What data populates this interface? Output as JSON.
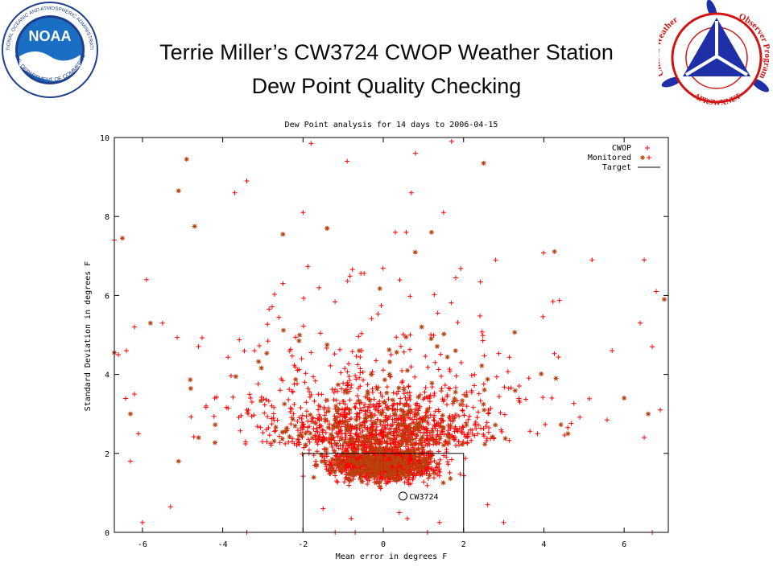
{
  "slide": {
    "title_line1": "Terrie Miller’s CW3724 CWOP Weather Station",
    "title_line2": "Dew Point Quality Checking"
  },
  "logos": {
    "noaa": {
      "icon": "noaa-logo",
      "center_text": "NOAA",
      "ring_text_top": "NATIONAL OCEANIC AND ATMOSPHERIC ADMINISTRATION",
      "ring_text_bottom": "U.S. DEPARTMENT OF COMMERCE",
      "colors": {
        "ring": "#1d3f8c",
        "center": "#1a6fc4",
        "wave": "#ffffff"
      }
    },
    "cwop": {
      "icon": "cwop-logo",
      "left_text": "Citizen Weather",
      "right_text": "Observer Program",
      "bottom_text": "APRSWXNET",
      "colors": {
        "ring": "#d01414",
        "triangle": "#1e2fa8",
        "spokes": "#ffffff",
        "blades": "#1e2fa8"
      }
    }
  },
  "chart_data": {
    "type": "scatter",
    "title": "Dew Point analysis for 14 days to 2006-04-15",
    "xlabel": "Mean error in degrees F",
    "ylabel": "Standard Deviation in degrees F",
    "xlim": [
      -6.7,
      7.1
    ],
    "ylim": [
      0,
      10
    ],
    "x_ticks": [
      -6,
      -4,
      -2,
      0,
      2,
      4,
      6
    ],
    "y_ticks": [
      0,
      2,
      4,
      6,
      8,
      10
    ],
    "grid": false,
    "legend_position": "top-right",
    "colors": {
      "cwop": "#ff0000",
      "monitored": "#b8410e",
      "target": "#000000",
      "axes": "#000000"
    },
    "series": [
      {
        "name": "CWOP",
        "marker": "plus",
        "point_count": 2400,
        "values": [
          [
            -1.8,
            9.85
          ],
          [
            0.8,
            9.6
          ],
          [
            -0.9,
            9.4
          ],
          [
            1.7,
            9.9
          ],
          [
            -3.4,
            8.9
          ],
          [
            -3.7,
            8.6
          ],
          [
            -2.0,
            8.1
          ],
          [
            0.7,
            8.6
          ],
          [
            1.5,
            8.1
          ],
          [
            -6.7,
            7.4
          ],
          [
            -1.4,
            7.7
          ],
          [
            0.3,
            7.6
          ],
          [
            2.8,
            6.9
          ],
          [
            -5.9,
            6.4
          ],
          [
            -2.5,
            6.3
          ],
          [
            5.2,
            6.9
          ],
          [
            6.5,
            6.9
          ],
          [
            -6.2,
            5.2
          ],
          [
            -5.5,
            5.3
          ],
          [
            6.8,
            6.1
          ],
          [
            -6.6,
            4.5
          ],
          [
            -6.4,
            4.6
          ],
          [
            6.7,
            4.7
          ],
          [
            5.7,
            4.6
          ],
          [
            6.4,
            5.3
          ],
          [
            -3.4,
            3.1
          ],
          [
            3.4,
            3.3
          ],
          [
            -4.2,
            3.4
          ],
          [
            4.2,
            3.4
          ],
          [
            -6.2,
            3.5
          ],
          [
            -6.1,
            2.5
          ],
          [
            6.5,
            2.4
          ],
          [
            -6.3,
            1.8
          ],
          [
            6.9,
            3.1
          ],
          [
            -5.3,
            0.65
          ],
          [
            -6.0,
            0.25
          ],
          [
            2.6,
            0.7
          ],
          [
            3.0,
            0.25
          ],
          [
            6.7,
            0.0
          ],
          [
            -3.4,
            0.0
          ],
          [
            -1.2,
            0.0
          ],
          [
            -0.7,
            0.0
          ],
          [
            1.1,
            0.0
          ],
          [
            1.4,
            0.25
          ],
          [
            0.4,
            0.5
          ],
          [
            0.6,
            0.35
          ],
          [
            -0.8,
            0.35
          ],
          [
            -1.5,
            0.6
          ]
        ]
      },
      {
        "name": "Monitored",
        "marker": "star",
        "point_count": 480,
        "values": [
          [
            -4.9,
            9.45
          ],
          [
            2.5,
            9.35
          ],
          [
            -5.1,
            8.65
          ],
          [
            -2.5,
            7.55
          ],
          [
            -1.4,
            7.7
          ],
          [
            1.2,
            7.6
          ],
          [
            -6.5,
            7.45
          ],
          [
            -4.7,
            7.75
          ],
          [
            -2.1,
            4.85
          ],
          [
            -1.4,
            4.75
          ],
          [
            -0.6,
            4.6
          ],
          [
            1.8,
            4.6
          ],
          [
            4.3,
            3.9
          ],
          [
            -6.3,
            3.0
          ],
          [
            6.0,
            3.4
          ],
          [
            -5.1,
            1.8
          ],
          [
            -4.6,
            2.4
          ],
          [
            4.6,
            2.5
          ],
          [
            -5.8,
            5.3
          ],
          [
            6.6,
            3.0
          ],
          [
            -6.7,
            4.55
          ],
          [
            7.0,
            5.9
          ],
          [
            -0.3,
            4.0
          ],
          [
            0.6,
            4.1
          ]
        ]
      },
      {
        "name": "Target",
        "marker": "line",
        "rect": {
          "x_min": -2,
          "x_max": 2,
          "y_min": 0,
          "y_max": 2
        }
      }
    ],
    "annotations": [
      {
        "text": "CW3724",
        "x": 0.75,
        "y": 0.92
      }
    ]
  }
}
